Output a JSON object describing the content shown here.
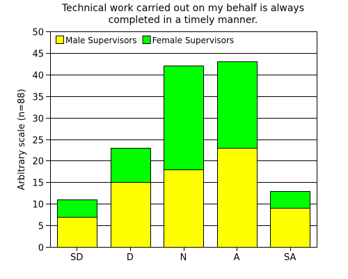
{
  "chart_data": {
    "type": "bar",
    "stacked": true,
    "title_lines": [
      "Technical work carried out on my behalf is always",
      "completed in a timely manner."
    ],
    "xlabel": "",
    "ylabel": "Arbitrary scale (n=88)",
    "categories": [
      "SD",
      "D",
      "N",
      "A",
      "SA"
    ],
    "series": [
      {
        "name": "Male Supervisors",
        "values": [
          7,
          15,
          18,
          23,
          9
        ],
        "color": "#ffff00"
      },
      {
        "name": "Female Supervisors",
        "values": [
          4,
          8,
          24,
          20,
          4
        ],
        "color": "#00ff00"
      }
    ],
    "ylim": [
      0,
      50
    ],
    "yticks": [
      "0",
      "5",
      "10",
      "15",
      "20",
      "25",
      "30",
      "35",
      "40",
      "45",
      "50"
    ],
    "grid": true,
    "legend_position": "top-left"
  }
}
